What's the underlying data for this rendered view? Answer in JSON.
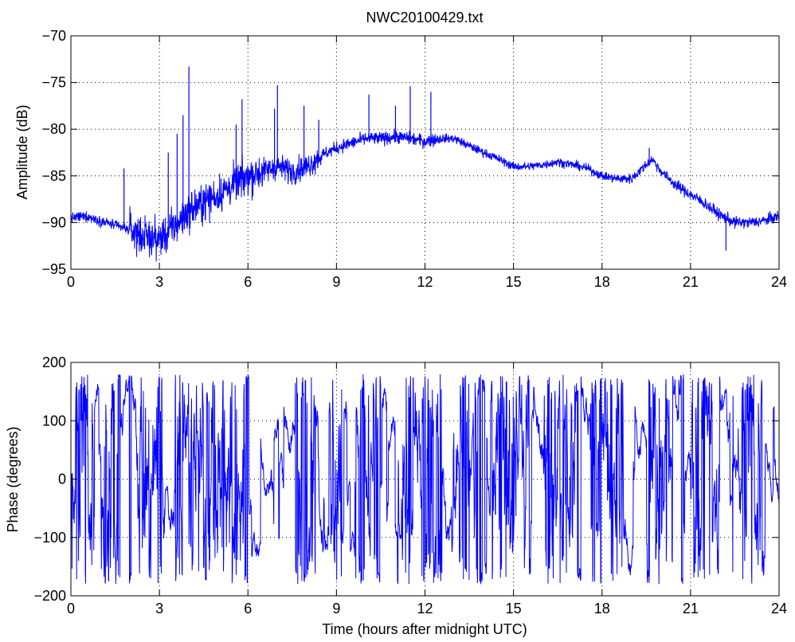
{
  "figure": {
    "background": "#ffffff",
    "axes_color": "#000000",
    "grid_color": "#000000",
    "line_color": "#0000ff"
  },
  "chart_data": [
    {
      "type": "line",
      "title": "NWC20100429.txt",
      "xlabel": "",
      "ylabel": "Amplitude (dB)",
      "xlim": [
        0,
        24
      ],
      "ylim": [
        -95,
        -70
      ],
      "xticks": [
        0,
        3,
        6,
        9,
        12,
        15,
        18,
        21,
        24
      ],
      "yticks": [
        -95,
        -90,
        -85,
        -80,
        -75,
        -70
      ],
      "xtick_labels": [
        "0",
        "3",
        "6",
        "9",
        "12",
        "15",
        "18",
        "21",
        "24"
      ],
      "ytick_labels": [
        "−95",
        "−90",
        "−85",
        "−80",
        "−75",
        "−70"
      ],
      "grid": true,
      "series": [
        {
          "color": "#0000ff",
          "x": [
            0,
            0.5,
            1.0,
            1.5,
            2.0,
            2.5,
            3.0,
            3.5,
            4.0,
            4.5,
            5.0,
            5.5,
            6.0,
            6.5,
            7.0,
            7.5,
            8.0,
            8.5,
            9.0,
            9.5,
            10.0,
            10.5,
            11.0,
            11.5,
            12.0,
            12.5,
            13.0,
            13.5,
            14.0,
            14.5,
            15.0,
            15.5,
            16.0,
            16.5,
            17.0,
            17.5,
            18.0,
            18.5,
            19.0,
            19.5,
            19.7,
            20.0,
            20.5,
            21.0,
            21.5,
            22.0,
            22.5,
            23.0,
            23.5,
            24.0
          ],
          "y": [
            -89.5,
            -89.3,
            -89.8,
            -90.3,
            -90.8,
            -91.5,
            -91.8,
            -90.5,
            -88.8,
            -87.8,
            -87.0,
            -86.0,
            -85.0,
            -84.5,
            -84.0,
            -84.5,
            -84.0,
            -82.8,
            -82.0,
            -81.5,
            -81.0,
            -81.0,
            -80.8,
            -81.0,
            -81.3,
            -81.0,
            -81.0,
            -81.8,
            -82.5,
            -83.2,
            -84.0,
            -84.0,
            -83.8,
            -83.5,
            -83.8,
            -84.2,
            -85.0,
            -85.3,
            -85.3,
            -83.8,
            -83.2,
            -84.5,
            -86.0,
            -87.0,
            -88.0,
            -89.2,
            -90.0,
            -90.0,
            -89.8,
            -89.3
          ],
          "spikes": [
            [
              1.8,
              -84.2
            ],
            [
              3.3,
              -82.5
            ],
            [
              3.6,
              -80.5
            ],
            [
              3.8,
              -78.5
            ],
            [
              4.0,
              -73.3
            ],
            [
              5.6,
              -79.5
            ],
            [
              5.8,
              -76.8
            ],
            [
              6.9,
              -77.8
            ],
            [
              7.0,
              -75.3
            ],
            [
              7.9,
              -77.5
            ],
            [
              8.4,
              -79.0
            ],
            [
              10.1,
              -76.3
            ],
            [
              11.0,
              -77.5
            ],
            [
              11.5,
              -75.4
            ],
            [
              12.2,
              -76.0
            ],
            [
              19.6,
              -82.0
            ],
            [
              22.2,
              -93.0
            ]
          ]
        }
      ]
    },
    {
      "type": "line",
      "title": "",
      "xlabel": "Time (hours after midnight UTC)",
      "ylabel": "Phase (degrees)",
      "xlim": [
        0,
        24
      ],
      "ylim": [
        -200,
        200
      ],
      "xticks": [
        0,
        3,
        6,
        9,
        12,
        15,
        18,
        21,
        24
      ],
      "yticks": [
        -200,
        -100,
        0,
        100,
        200
      ],
      "xtick_labels": [
        "0",
        "3",
        "6",
        "9",
        "12",
        "15",
        "18",
        "21",
        "24"
      ],
      "ytick_labels": [
        "−200",
        "−100",
        "0",
        "100",
        "200"
      ],
      "grid": true,
      "series": [
        {
          "color": "#0000ff",
          "range": [
            -180,
            180
          ],
          "dense_intervals": [
            [
              0.0,
              0.8
            ],
            [
              1.0,
              1.6
            ],
            [
              2.2,
              3.2
            ],
            [
              3.5,
              5.9
            ],
            [
              7.6,
              8.3
            ],
            [
              8.8,
              9.2
            ],
            [
              9.6,
              10.4
            ],
            [
              11.2,
              12.6
            ],
            [
              12.9,
              13.8
            ],
            [
              14.2,
              15.6
            ],
            [
              16.0,
              17.2
            ],
            [
              17.6,
              18.8
            ],
            [
              19.6,
              20.4
            ],
            [
              21.0,
              22.0
            ],
            [
              22.6,
              23.5
            ]
          ]
        }
      ]
    }
  ]
}
